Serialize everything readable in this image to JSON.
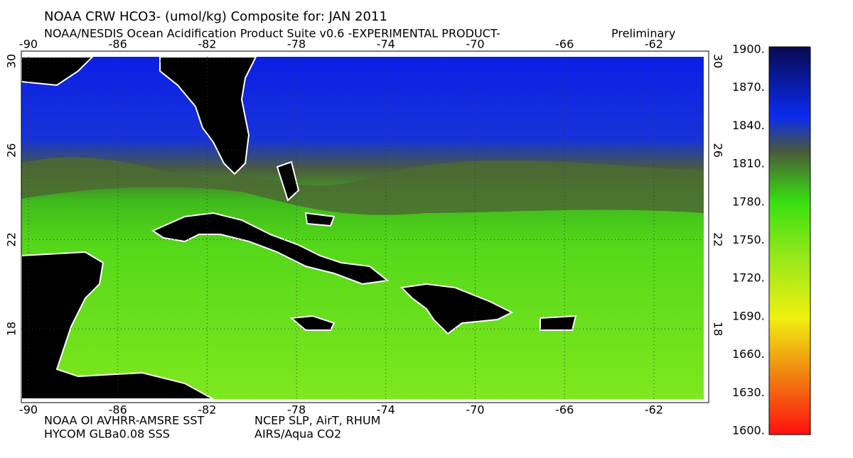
{
  "header": {
    "title": "NOAA CRW HCO3- (umol/kg) Composite for: JAN 2011",
    "subtitle": "NOAA/NESDIS Ocean Acidification Product Suite  v0.6 -EXPERIMENTAL PRODUCT-",
    "status": "Preliminary"
  },
  "map": {
    "lon_ticks": [
      "-90",
      "-86",
      "-82",
      "-78",
      "-74",
      "-70",
      "-66",
      "-62"
    ],
    "lat_ticks": [
      "30",
      "26",
      "22",
      "18"
    ]
  },
  "colorbar": {
    "labels": [
      "1900.",
      "1870.",
      "1840.",
      "1810.",
      "1780.",
      "1750.",
      "1720.",
      "1690.",
      "1660.",
      "1630.",
      "1600."
    ]
  },
  "footer": {
    "left": [
      "NOAA OI AVHRR-AMSRE SST",
      "HYCOM GLBa0.08 SSS"
    ],
    "right": [
      "NCEP SLP, AirT, RHUM",
      "AIRS/Aqua CO2"
    ]
  }
}
